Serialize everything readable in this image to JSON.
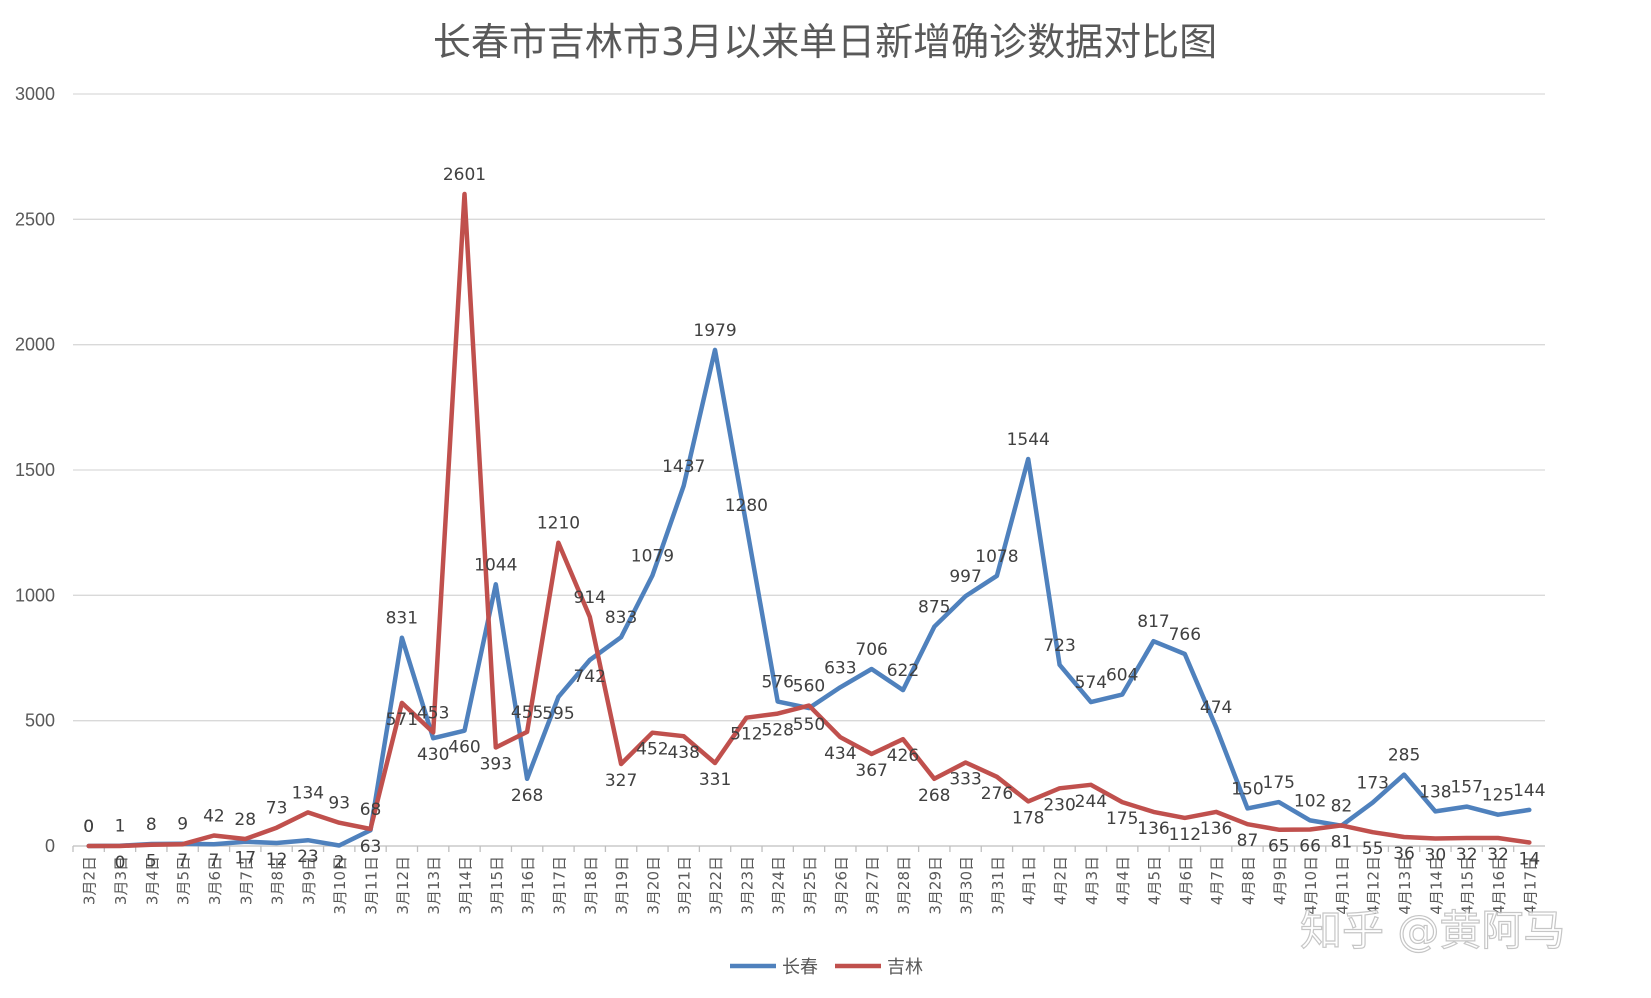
{
  "chart_data": {
    "type": "line",
    "title": "长春市吉林市3月以来单日新增确诊数据对比图",
    "xlabel": "",
    "ylabel": "",
    "ylim": [
      0,
      3000
    ],
    "yticks": [
      0,
      500,
      1000,
      1500,
      2000,
      2500,
      3000
    ],
    "grid": true,
    "legend_position": "bottom",
    "categories": [
      "3月2日",
      "3月3日",
      "3月4日",
      "3月5日",
      "3月6日",
      "3月7日",
      "3月8日",
      "3月9日",
      "3月10日",
      "3月11日",
      "3月12日",
      "3月13日",
      "3月14日",
      "3月15日",
      "3月16日",
      "3月17日",
      "3月18日",
      "3月19日",
      "3月20日",
      "3月21日",
      "3月22日",
      "3月23日",
      "3月24日",
      "3月25日",
      "3月26日",
      "3月27日",
      "3月28日",
      "3月29日",
      "3月30日",
      "3月31日",
      "4月1日",
      "4月2日",
      "4月3日",
      "4月4日",
      "4月5日",
      "4月6日",
      "4月7日",
      "4月8日",
      "4月9日",
      "4月10日",
      "4月11日",
      "4月12日",
      "4月13日",
      "4月14日",
      "4月15日",
      "4月16日",
      "4月17日"
    ],
    "series": [
      {
        "name": "长春",
        "color": "#4f81bd",
        "values": [
          0,
          1,
          8,
          9,
          7,
          17,
          12,
          23,
          2,
          63,
          831,
          430,
          460,
          1044,
          268,
          595,
          742,
          833,
          1079,
          1437,
          1979,
          1280,
          576,
          550,
          633,
          706,
          622,
          875,
          997,
          1078,
          1544,
          723,
          574,
          604,
          817,
          766,
          474,
          150,
          175,
          102,
          81,
          173,
          285,
          138,
          157,
          125,
          144
        ]
      },
      {
        "name": "吉林",
        "color": "#c0504d",
        "values": [
          0,
          0,
          5,
          7,
          42,
          28,
          73,
          134,
          93,
          68,
          571,
          453,
          2601,
          393,
          455,
          1210,
          914,
          327,
          452,
          438,
          331,
          512,
          528,
          560,
          434,
          367,
          426,
          268,
          333,
          276,
          178,
          230,
          244,
          175,
          136,
          112,
          136,
          87,
          65,
          66,
          82,
          55,
          36,
          30,
          32,
          32,
          14
        ]
      }
    ]
  },
  "watermark": "知乎 @黄阿马"
}
